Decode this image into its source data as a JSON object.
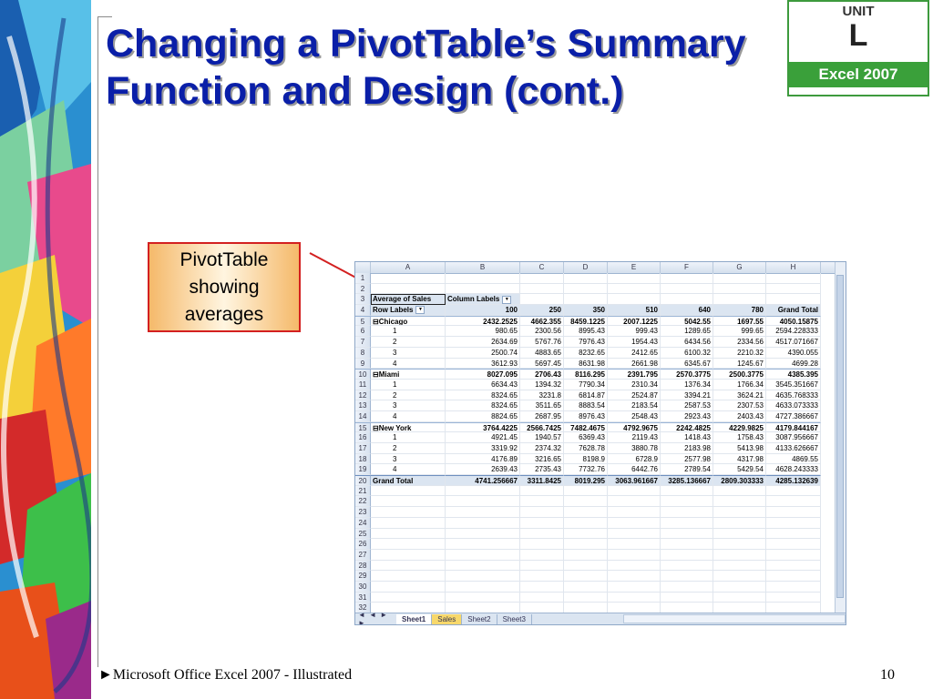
{
  "slide": {
    "title": "Changing a PivotTable’s Summary Function and Design (cont.)",
    "badge": {
      "unit": "UNIT",
      "letter": "L",
      "product": "Excel 2007"
    },
    "callout": "PivotTable showing averages",
    "footer": "►Microsoft Office Excel 2007 - Illustrated",
    "page_number": "10"
  },
  "sheet": {
    "columns": [
      "A",
      "B",
      "C",
      "D",
      "E",
      "F",
      "G",
      "H"
    ],
    "row_numbers": [
      "1",
      "2",
      "3",
      "4",
      "5",
      "6",
      "7",
      "8",
      "9",
      "10",
      "11",
      "12",
      "13",
      "14",
      "15",
      "16",
      "17",
      "18",
      "19",
      "20",
      "21",
      "22",
      "23",
      "24",
      "25",
      "26",
      "27",
      "28",
      "29",
      "30",
      "31",
      "32"
    ],
    "r3": {
      "a": "Average of Sales",
      "b": "Column Labels"
    },
    "r4": [
      "Row Labels",
      "100",
      "250",
      "350",
      "510",
      "640",
      "780",
      "Grand Total"
    ],
    "r5": [
      "⊟Chicago",
      "2432.2525",
      "4662.355",
      "8459.1225",
      "2007.1225",
      "5042.55",
      "1697.55",
      "4050.15875"
    ],
    "r6": [
      "1",
      "980.65",
      "2300.56",
      "8995.43",
      "999.43",
      "1289.65",
      "999.65",
      "2594.228333"
    ],
    "r7": [
      "2",
      "2634.69",
      "5767.76",
      "7976.43",
      "1954.43",
      "6434.56",
      "2334.56",
      "4517.071667"
    ],
    "r8": [
      "3",
      "2500.74",
      "4883.65",
      "8232.65",
      "2412.65",
      "6100.32",
      "2210.32",
      "4390.055"
    ],
    "r9": [
      "4",
      "3612.93",
      "5697.45",
      "8631.98",
      "2661.98",
      "6345.67",
      "1245.67",
      "4699.28"
    ],
    "r10": [
      "⊟Miami",
      "8027.095",
      "2706.43",
      "8116.295",
      "2391.795",
      "2570.3775",
      "2500.3775",
      "4385.395"
    ],
    "r11": [
      "1",
      "6634.43",
      "1394.32",
      "7790.34",
      "2310.34",
      "1376.34",
      "1766.34",
      "3545.351667"
    ],
    "r12": [
      "2",
      "8324.65",
      "3231.8",
      "6814.87",
      "2524.87",
      "3394.21",
      "3624.21",
      "4635.768333"
    ],
    "r13": [
      "3",
      "8324.65",
      "3511.65",
      "8883.54",
      "2183.54",
      "2587.53",
      "2307.53",
      "4633.073333"
    ],
    "r14": [
      "4",
      "8824.65",
      "2687.95",
      "8976.43",
      "2548.43",
      "2923.43",
      "2403.43",
      "4727.386667"
    ],
    "r15": [
      "⊟New York",
      "3764.4225",
      "2566.7425",
      "7482.4675",
      "4792.9675",
      "2242.4825",
      "4229.9825",
      "4179.844167"
    ],
    "r16": [
      "1",
      "4921.45",
      "1940.57",
      "6369.43",
      "2119.43",
      "1418.43",
      "1758.43",
      "3087.956667"
    ],
    "r17": [
      "2",
      "3319.92",
      "2374.32",
      "7628.78",
      "3880.78",
      "2183.98",
      "5413.98",
      "4133.626667"
    ],
    "r18": [
      "3",
      "4176.89",
      "3216.65",
      "8198.9",
      "6728.9",
      "2577.98",
      "4317.98",
      "4869.55"
    ],
    "r19": [
      "4",
      "2639.43",
      "2735.43",
      "7732.76",
      "6442.76",
      "2789.54",
      "5429.54",
      "4628.243333"
    ],
    "r20": [
      "Grand Total",
      "4741.256667",
      "3311.8425",
      "8019.295",
      "3063.961667",
      "3285.136667",
      "2809.303333",
      "4285.132639"
    ],
    "tabs": [
      "Sheet1",
      "Sales",
      "Sheet2",
      "Sheet3"
    ],
    "nav": "◄ ◄ ► ►"
  },
  "colors": {
    "title": "#0a1fa8",
    "callout_border": "#d32020",
    "badge_green": "#3aa03a"
  }
}
